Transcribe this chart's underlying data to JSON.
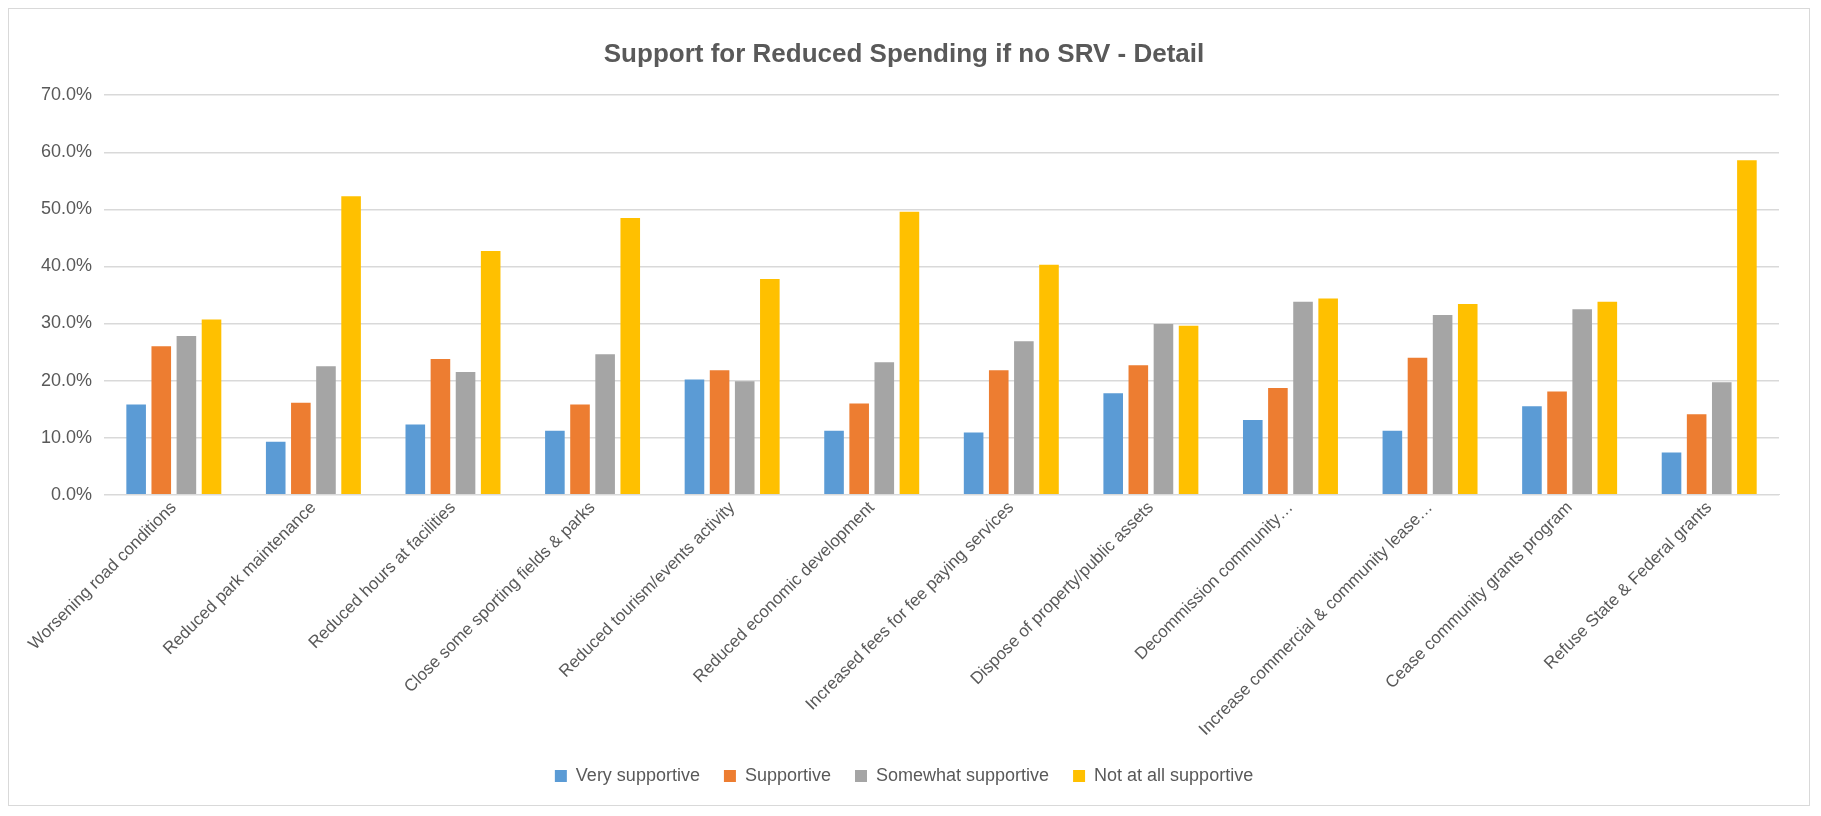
{
  "chart_data": {
    "type": "bar",
    "title": "Support for Reduced Spending if no SRV - Detail",
    "categories": [
      "Worsening road conditions",
      "Reduced park maintenance",
      "Reduced hours at facilities",
      "Close some sporting fields & parks",
      "Reduced tourism/events activity",
      "Reduced economic development",
      "Increased fees for fee paying services",
      "Dispose of property/public assets",
      "Decommission community…",
      "Increase commercial & community lease…",
      "Cease community grants program",
      "Refuse State & Federal grants"
    ],
    "series": [
      {
        "name": "Very supportive",
        "color": "#5b9bd5",
        "values": [
          15.8,
          9.3,
          12.3,
          11.2,
          20.2,
          11.2,
          10.9,
          17.8,
          13.1,
          11.2,
          15.5,
          7.4
        ]
      },
      {
        "name": "Supportive",
        "color": "#ed7d31",
        "values": [
          26.0,
          16.1,
          23.8,
          15.8,
          21.8,
          16.0,
          21.8,
          22.7,
          18.7,
          24.0,
          18.1,
          14.1
        ]
      },
      {
        "name": "Somewhat supportive",
        "color": "#a5a5a5",
        "values": [
          27.8,
          22.5,
          21.5,
          24.6,
          19.9,
          23.2,
          26.9,
          29.9,
          33.8,
          31.5,
          32.5,
          19.7
        ]
      },
      {
        "name": "Not at all supportive",
        "color": "#ffc000",
        "values": [
          30.7,
          52.3,
          42.7,
          48.5,
          37.8,
          49.6,
          40.3,
          29.6,
          34.4,
          33.4,
          33.8,
          58.6
        ]
      }
    ],
    "ylim": [
      0,
      70
    ],
    "yticks": [
      {
        "value": 0,
        "label": "0.0%"
      },
      {
        "value": 10,
        "label": "10.0%"
      },
      {
        "value": 20,
        "label": "20.0%"
      },
      {
        "value": 30,
        "label": "30.0%"
      },
      {
        "value": 40,
        "label": "40.0%"
      },
      {
        "value": 50,
        "label": "50.0%"
      },
      {
        "value": 60,
        "label": "60.0%"
      },
      {
        "value": 70,
        "label": "70.0%"
      }
    ],
    "grid": "y",
    "legend": "bottom"
  }
}
